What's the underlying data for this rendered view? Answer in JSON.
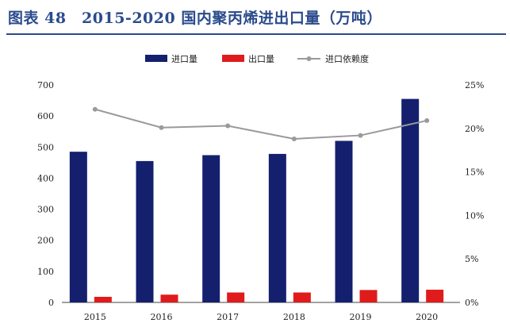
{
  "figure": {
    "title": "图表 48　2015-2020 国内聚丙烯进出口量（万吨）"
  },
  "chart_data": {
    "type": "bar",
    "title": "图表 48　2015-2020 国内聚丙烯进出口量（万吨）",
    "categories": [
      "2015",
      "2016",
      "2017",
      "2018",
      "2019",
      "2020"
    ],
    "series": [
      {
        "name": "进口量",
        "type": "bar",
        "axis": "left",
        "color": "#14206e",
        "values": [
          485,
          455,
          474,
          478,
          520,
          655
        ]
      },
      {
        "name": "出口量",
        "type": "bar",
        "axis": "left",
        "color": "#e01b1b",
        "values": [
          18,
          25,
          32,
          32,
          40,
          41
        ]
      },
      {
        "name": "进口依赖度",
        "type": "line",
        "axis": "right",
        "color": "#9a9a9a",
        "values": [
          0.222,
          0.201,
          0.203,
          0.188,
          0.192,
          0.209
        ]
      }
    ],
    "y_left": {
      "ylim": [
        0,
        700
      ],
      "ticks": [
        0,
        100,
        200,
        300,
        400,
        500,
        600,
        700
      ]
    },
    "y_right": {
      "ylim": [
        0,
        0.25
      ],
      "ticks": [
        "0%",
        "5%",
        "10%",
        "15%",
        "20%",
        "25%"
      ]
    },
    "legend_position": "top-center",
    "grid": false
  }
}
